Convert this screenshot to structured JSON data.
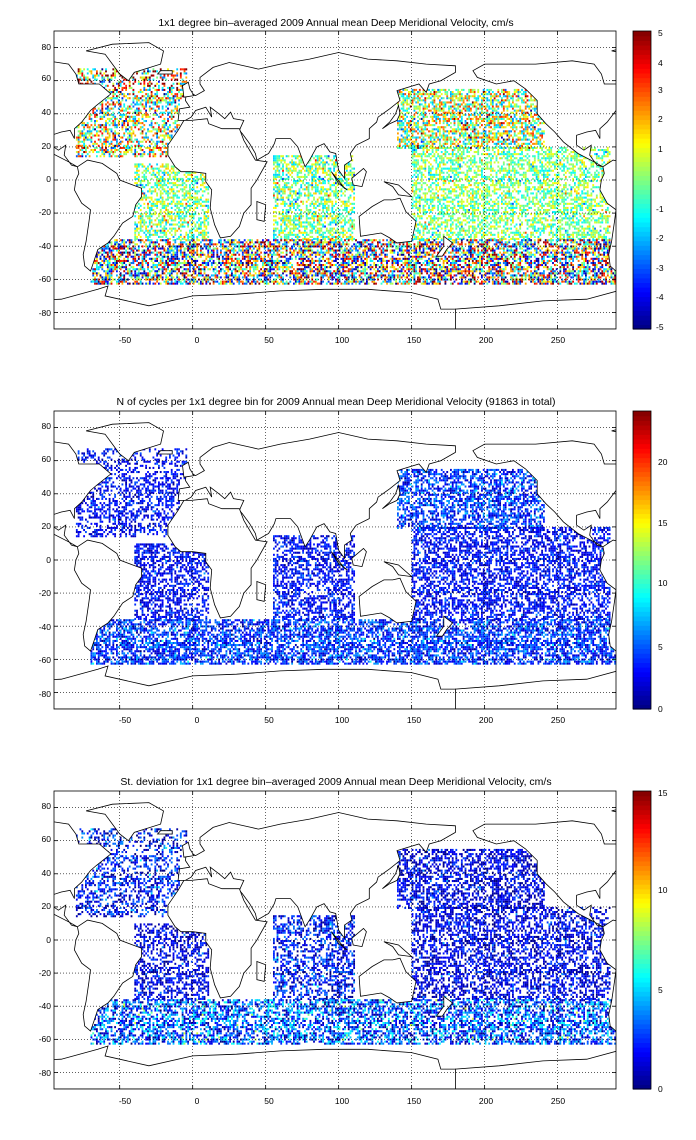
{
  "chart_data": [
    {
      "type": "heatmap",
      "title": "1x1 degree bin–averaged 2009 Annual mean Deep Meridional Velocity, cm/s",
      "xlabel": "",
      "ylabel": "",
      "xlim": [
        -95,
        290
      ],
      "ylim": [
        -90,
        90
      ],
      "x_ticks": [
        "-50",
        "0",
        "50",
        "100",
        "150",
        "200",
        "250"
      ],
      "y_ticks": [
        "80",
        "60",
        "40",
        "20",
        "0",
        "-20",
        "-40",
        "-60",
        "-80"
      ],
      "grid": true,
      "colorbar": {
        "colormap": "jet",
        "range": [
          -5,
          5
        ],
        "ticks": [
          "5",
          "4",
          "3",
          "2",
          "1",
          "0",
          "-1",
          "-2",
          "-3",
          "-4",
          "-5"
        ]
      },
      "bands": [
        {
          "lat": [
            50,
            68
          ],
          "lon": [
            -80,
            -5
          ],
          "value": 1.5,
          "spread": 4.5,
          "density": 0.45
        },
        {
          "lat": [
            15,
            50
          ],
          "lon": [
            -80,
            -10
          ],
          "value": 0.5,
          "spread": 3.5,
          "density": 0.5
        },
        {
          "lat": [
            -35,
            10
          ],
          "lon": [
            -40,
            10
          ],
          "value": 0,
          "spread": 1.8,
          "density": 0.55
        },
        {
          "lat": [
            -35,
            15
          ],
          "lon": [
            55,
            110
          ],
          "value": 0,
          "spread": 1.8,
          "density": 0.55
        },
        {
          "lat": [
            20,
            55
          ],
          "lon": [
            140,
            240
          ],
          "value": 0.5,
          "spread": 3,
          "density": 0.6
        },
        {
          "lat": [
            -35,
            20
          ],
          "lon": [
            150,
            285
          ],
          "value": 0,
          "spread": 1.5,
          "density": 0.55
        },
        {
          "lat": [
            -62,
            -35
          ],
          "lon": [
            -70,
            290
          ],
          "value": 0,
          "spread": 5,
          "density": 0.65
        }
      ]
    },
    {
      "type": "heatmap",
      "title": "N of cycles per 1x1 degree bin for 2009 Annual mean Deep Meridional Velocity (91863 in total)",
      "xlabel": "",
      "ylabel": "",
      "xlim": [
        -95,
        290
      ],
      "ylim": [
        -90,
        90
      ],
      "x_ticks": [
        "-50",
        "0",
        "50",
        "100",
        "150",
        "200",
        "250"
      ],
      "y_ticks": [
        "80",
        "60",
        "40",
        "20",
        "0",
        "-20",
        "-40",
        "-60",
        "-80"
      ],
      "grid": true,
      "colorbar": {
        "colormap": "jet",
        "range": [
          0,
          24
        ],
        "ticks": [
          "20",
          "15",
          "10",
          "5",
          "0"
        ]
      },
      "bands": [
        {
          "lat": [
            50,
            68
          ],
          "lon": [
            -80,
            -5
          ],
          "value": 3,
          "spread": 2,
          "density": 0.35
        },
        {
          "lat": [
            15,
            50
          ],
          "lon": [
            -80,
            -10
          ],
          "value": 3,
          "spread": 2,
          "density": 0.45
        },
        {
          "lat": [
            -35,
            10
          ],
          "lon": [
            -40,
            10
          ],
          "value": 3,
          "spread": 2,
          "density": 0.55
        },
        {
          "lat": [
            -35,
            15
          ],
          "lon": [
            55,
            110
          ],
          "value": 3,
          "spread": 2,
          "density": 0.55
        },
        {
          "lat": [
            20,
            55
          ],
          "lon": [
            140,
            240
          ],
          "value": 4,
          "spread": 3,
          "density": 0.6
        },
        {
          "lat": [
            -35,
            20
          ],
          "lon": [
            150,
            285
          ],
          "value": 3,
          "spread": 2,
          "density": 0.55
        },
        {
          "lat": [
            -62,
            -35
          ],
          "lon": [
            -70,
            290
          ],
          "value": 4,
          "spread": 3,
          "density": 0.65
        }
      ]
    },
    {
      "type": "heatmap",
      "title": "St. deviation for 1x1 degree bin–averaged 2009 Annual mean Deep Meridional Velocity, cm/s",
      "xlabel": "",
      "ylabel": "",
      "xlim": [
        -95,
        290
      ],
      "ylim": [
        -90,
        90
      ],
      "x_ticks": [
        "-50",
        "0",
        "50",
        "100",
        "150",
        "200",
        "250"
      ],
      "y_ticks": [
        "80",
        "60",
        "40",
        "20",
        "0",
        "-20",
        "-40",
        "-60",
        "-80"
      ],
      "grid": true,
      "colorbar": {
        "colormap": "jet",
        "range": [
          0,
          15
        ],
        "ticks": [
          "15",
          "10",
          "5",
          "0"
        ]
      },
      "bands": [
        {
          "lat": [
            50,
            68
          ],
          "lon": [
            -80,
            -5
          ],
          "value": 2,
          "spread": 2.5,
          "density": 0.35
        },
        {
          "lat": [
            15,
            50
          ],
          "lon": [
            -80,
            -10
          ],
          "value": 2,
          "spread": 2,
          "density": 0.45
        },
        {
          "lat": [
            -35,
            10
          ],
          "lon": [
            -40,
            10
          ],
          "value": 1.5,
          "spread": 1.5,
          "density": 0.5
        },
        {
          "lat": [
            -35,
            15
          ],
          "lon": [
            55,
            110
          ],
          "value": 2,
          "spread": 2,
          "density": 0.5
        },
        {
          "lat": [
            20,
            55
          ],
          "lon": [
            140,
            240
          ],
          "value": 1.5,
          "spread": 1.5,
          "density": 0.55
        },
        {
          "lat": [
            -35,
            20
          ],
          "lon": [
            150,
            285
          ],
          "value": 1.5,
          "spread": 1.5,
          "density": 0.5
        },
        {
          "lat": [
            -62,
            -35
          ],
          "lon": [
            -70,
            290
          ],
          "value": 3,
          "spread": 3,
          "density": 0.6
        }
      ]
    }
  ]
}
